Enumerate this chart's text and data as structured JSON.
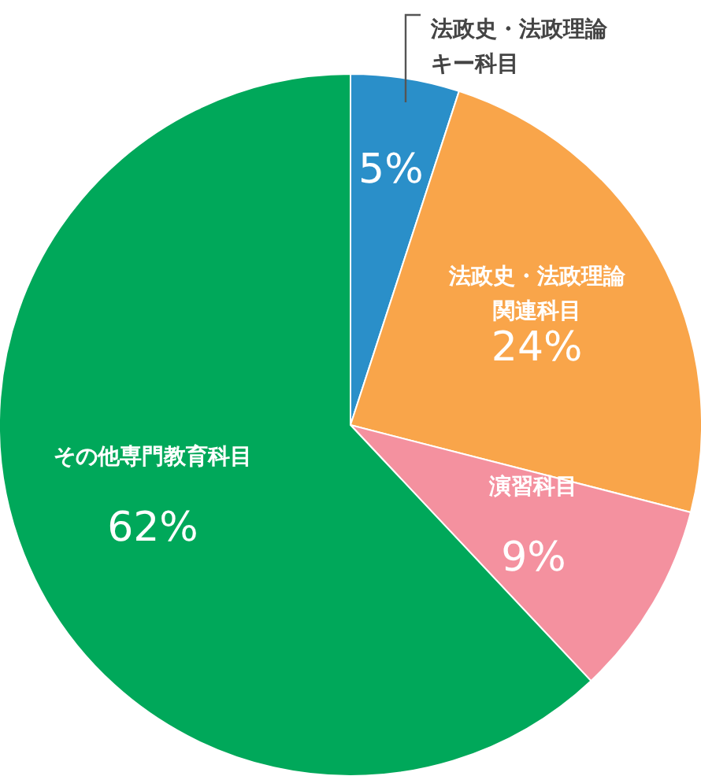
{
  "chart_data": {
    "type": "pie",
    "categories": [
      "法政史・法政理論キー科目",
      "法政史・法政理論関連科目",
      "演習科目",
      "その他専門教育科目"
    ],
    "values": [
      5,
      24,
      9,
      62
    ],
    "colors": [
      "#2a8fc9",
      "#f9a54a",
      "#f4919f",
      "#00a85a"
    ],
    "value_labels": [
      "5%",
      "24%",
      "9%",
      "62%"
    ],
    "legend": false
  }
}
